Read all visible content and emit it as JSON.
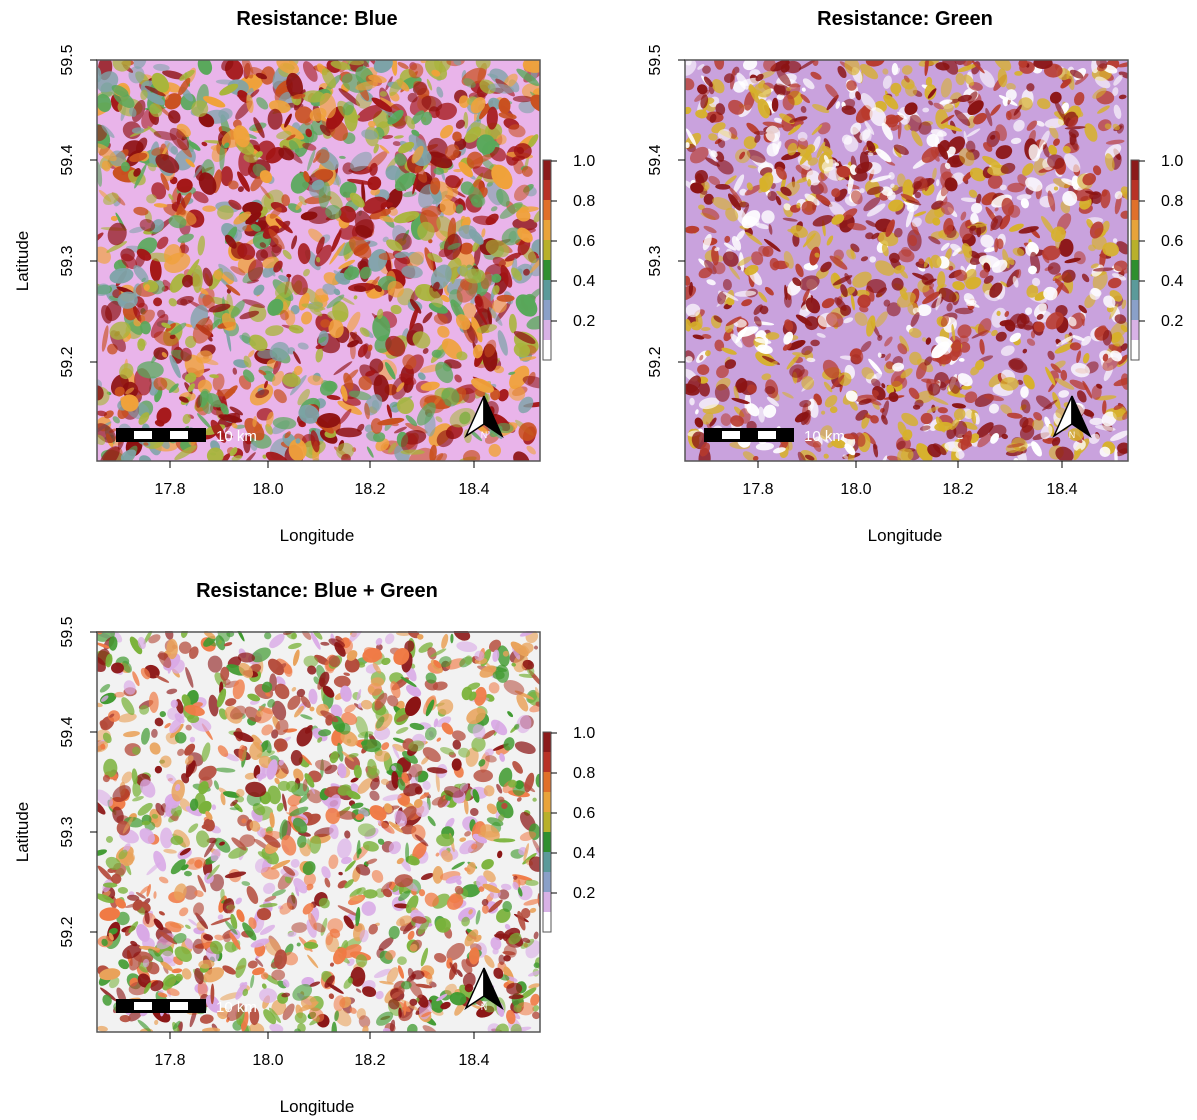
{
  "legend_ticks": [
    "1.0",
    "0.8",
    "0.6",
    "0.4",
    "0.2"
  ],
  "legend_colors": [
    "#8b1a1a",
    "#b83226",
    "#e0702a",
    "#e8a33a",
    "#b8b02a",
    "#2f8f2f",
    "#5b9a9a",
    "#8aa0c8",
    "#d8b2e6",
    "#ffffff"
  ],
  "x_ticks": [
    "17.8",
    "18.0",
    "18.2",
    "18.4"
  ],
  "y_ticks": [
    "59.2",
    "59.3",
    "59.4",
    "59.5"
  ],
  "x_label": "Longitude",
  "y_label": "Latitude",
  "scale_label": "10 km",
  "north_label": "N",
  "panels": [
    {
      "title": "Resistance: Blue",
      "show_y_label": true,
      "show_x_label": true,
      "palette": [
        "#e9b4ea",
        "#7da3a8",
        "#58a85a",
        "#a9b53b",
        "#f0a23a",
        "#c9501e",
        "#a31414",
        "#8d0f0f"
      ],
      "background": "#e9b4ea"
    },
    {
      "title": "Resistance: Green",
      "show_y_label": true,
      "show_x_label": true,
      "palette": [
        "#c9a2dd",
        "#d7b12a",
        "#b83a2c",
        "#8b1414",
        "#ffffff"
      ],
      "background": "#c9a2dd"
    },
    {
      "title": "Resistance: Blue + Green",
      "show_y_label": true,
      "show_x_label": true,
      "palette": [
        "#f2f2f2",
        "#3f9a2f",
        "#7ab23a",
        "#e9a25a",
        "#f07a45",
        "#b44a3a",
        "#d9a9e6",
        "#8b1414"
      ],
      "background": "#f2f2f2"
    }
  ]
}
